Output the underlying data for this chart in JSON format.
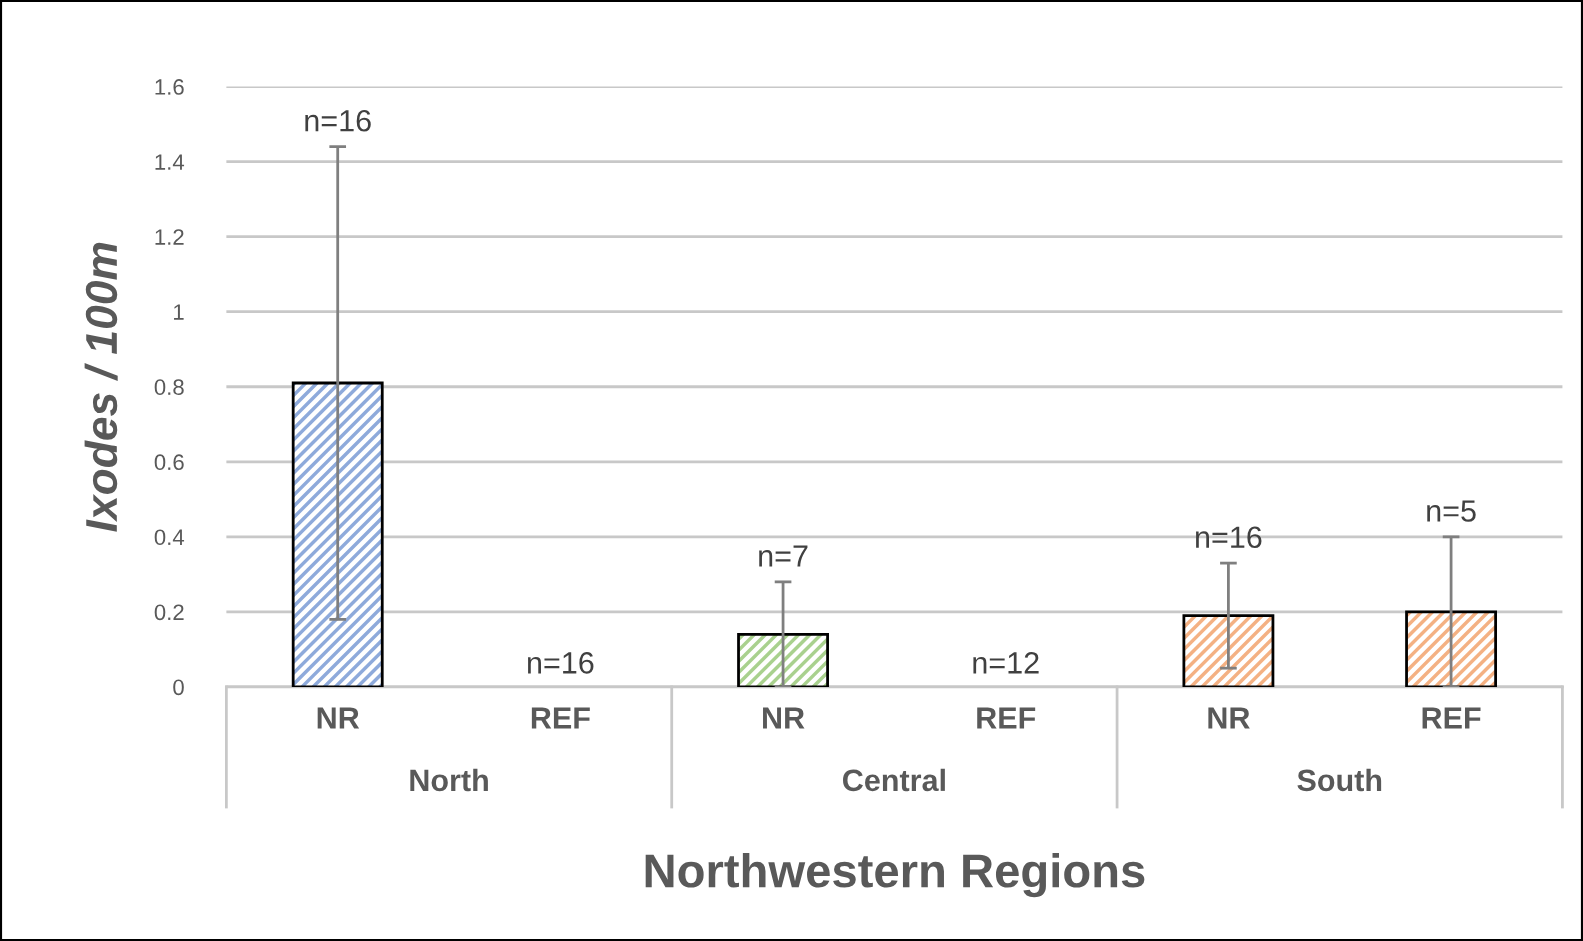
{
  "chart_data": {
    "type": "bar",
    "categories": [
      "NR",
      "REF",
      "NR",
      "REF",
      "NR",
      "REF"
    ],
    "values": [
      0.81,
      0,
      0.14,
      0,
      0.19,
      0.2
    ],
    "errors": [
      0.63,
      null,
      0.14,
      null,
      0.14,
      0.2
    ],
    "colors": [
      "#8eaadb",
      "#8eaadb",
      "#a9d18e",
      "#a9d18e",
      "#f4b183",
      "#f4b183"
    ],
    "xlabel": "Northwestern Regions",
    "ylabel": "Ixodes / 100m",
    "annotations": [
      "n=16",
      "n=16",
      "n=7",
      "n=12",
      "n=16",
      "n=5",
      "North",
      "Central",
      "South"
    ],
    "ylim": [
      0,
      1.6
    ],
    "yticks": [
      0,
      0.2,
      0.4,
      0.6,
      0.8,
      1,
      1.2,
      1.4,
      1.6
    ],
    "grid": "y",
    "legend": false
  }
}
